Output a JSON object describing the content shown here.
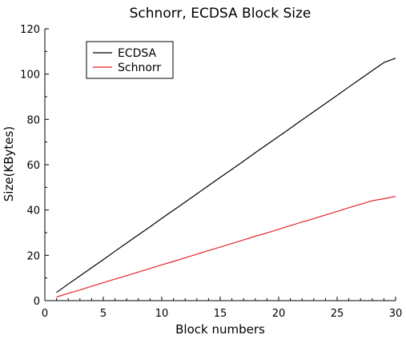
{
  "chart_data": {
    "type": "line",
    "title": "Schnorr, ECDSA Block Size",
    "xlabel": "Block numbers",
    "ylabel": "Size(KBytes)",
    "xlim": [
      0,
      30
    ],
    "ylim": [
      0,
      120
    ],
    "x_ticks": [
      0,
      5,
      10,
      15,
      20,
      25,
      30
    ],
    "y_ticks": [
      0,
      20,
      40,
      60,
      80,
      100,
      120
    ],
    "grid": false,
    "legend_position": "top-left",
    "x": [
      1,
      2,
      3,
      4,
      5,
      6,
      7,
      8,
      9,
      10,
      11,
      12,
      13,
      14,
      15,
      16,
      17,
      18,
      19,
      20,
      21,
      22,
      23,
      24,
      25,
      26,
      27,
      28,
      29,
      30
    ],
    "series": [
      {
        "name": "ECDSA",
        "color": "#000000",
        "values": [
          3.6,
          7.3,
          10.9,
          14.5,
          18.1,
          21.8,
          25.4,
          29.0,
          32.6,
          36.3,
          39.9,
          43.5,
          47.1,
          50.8,
          54.4,
          58.0,
          61.6,
          65.3,
          68.9,
          72.5,
          76.1,
          79.8,
          83.4,
          87.0,
          90.6,
          94.3,
          97.9,
          101.5,
          105.1,
          107.0
        ]
      },
      {
        "name": "Schnorr",
        "color": "#e8232a",
        "values": [
          1.6,
          3.2,
          4.7,
          6.3,
          7.9,
          9.5,
          11.0,
          12.6,
          14.2,
          15.8,
          17.3,
          18.9,
          20.5,
          22.1,
          23.6,
          25.2,
          26.8,
          28.4,
          29.9,
          31.5,
          33.1,
          34.7,
          36.2,
          37.8,
          39.4,
          41.0,
          42.5,
          44.1,
          45.0,
          46.0
        ]
      }
    ]
  }
}
